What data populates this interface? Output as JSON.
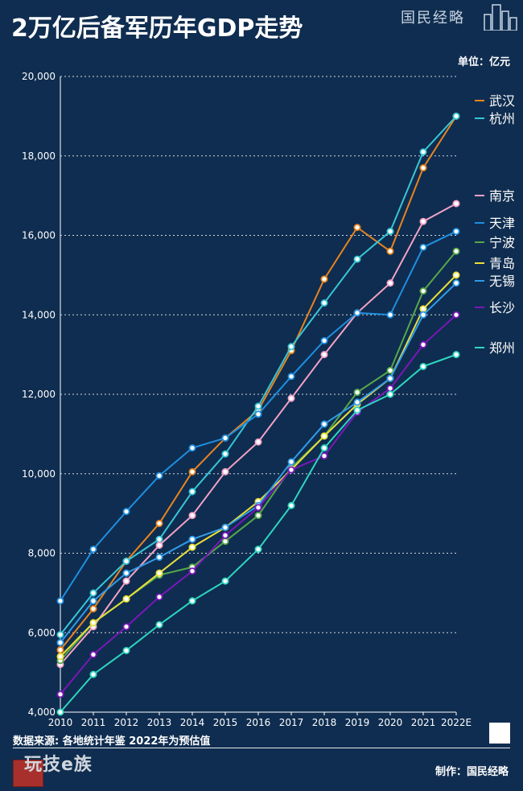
{
  "title": "2万亿后备军历年GDP走势",
  "brand": "国民经略",
  "unit": "单位：亿元",
  "footer": {
    "source": "数据来源: 各地统计年鉴  2022年为预估值",
    "credit": "制作：国民经略",
    "logo": "玩技e族"
  },
  "colors": {
    "background": "#0f2d50",
    "武汉": "#e8841f",
    "杭州": "#37c6d6",
    "南京": "#f2a2c6",
    "天津": "#1e8fe0",
    "宁波": "#56a84a",
    "青岛": "#e8df3a",
    "无锡": "#2f9be8",
    "长沙": "#7a17b8",
    "郑州": "#2ed6c0"
  },
  "chart_data": {
    "type": "line",
    "title": "2万亿后备军历年GDP走势",
    "xlabel": "",
    "ylabel": "亿元",
    "x": [
      "2010",
      "2011",
      "2012",
      "2013",
      "2014",
      "2015",
      "2016",
      "2017",
      "2018",
      "2019",
      "2020",
      "2021",
      "2022E"
    ],
    "ylim": [
      4000,
      20000
    ],
    "yticks": [
      "4,000",
      "6,000",
      "8,000",
      "10,000",
      "12,000",
      "14,000",
      "16,000",
      "18,000",
      "20,000"
    ],
    "grid": "horizontal dotted",
    "legend": "right",
    "series": [
      {
        "name": "武汉",
        "values": [
          5566,
          6600,
          7800,
          8750,
          10050,
          10900,
          11600,
          13100,
          14900,
          16200,
          15600,
          17700,
          19000
        ]
      },
      {
        "name": "杭州",
        "values": [
          5950,
          7000,
          7800,
          8350,
          9550,
          10500,
          11700,
          13200,
          14300,
          15400,
          16100,
          18100,
          19000
        ]
      },
      {
        "name": "南京",
        "values": [
          5200,
          6150,
          7300,
          8200,
          8950,
          10050,
          10800,
          11900,
          13000,
          14050,
          14800,
          16350,
          16800
        ]
      },
      {
        "name": "天津",
        "values": [
          6800,
          8100,
          9050,
          9950,
          10650,
          10900,
          11500,
          12450,
          13350,
          14050,
          14000,
          15700,
          16100
        ]
      },
      {
        "name": "宁波",
        "values": [
          5300,
          6250,
          6850,
          7450,
          7650,
          8300,
          8950,
          10150,
          10950,
          12050,
          12600,
          14600,
          15600
        ]
      },
      {
        "name": "青岛",
        "values": [
          5400,
          6250,
          6850,
          7500,
          8150,
          8650,
          9300,
          10100,
          10950,
          11750,
          12400,
          14150,
          15000
        ]
      },
      {
        "name": "无锡",
        "values": [
          5750,
          6800,
          7500,
          7900,
          8350,
          8650,
          9200,
          10300,
          11250,
          11800,
          12400,
          14000,
          14800
        ]
      },
      {
        "name": "长沙",
        "values": [
          4450,
          5450,
          6150,
          6900,
          7550,
          8450,
          9150,
          10100,
          10450,
          11550,
          12150,
          13250,
          14000
        ]
      },
      {
        "name": "郑州",
        "values": [
          4000,
          4950,
          5550,
          6200,
          6800,
          7300,
          8100,
          9200,
          10650,
          11600,
          12000,
          12700,
          13000
        ]
      }
    ]
  }
}
